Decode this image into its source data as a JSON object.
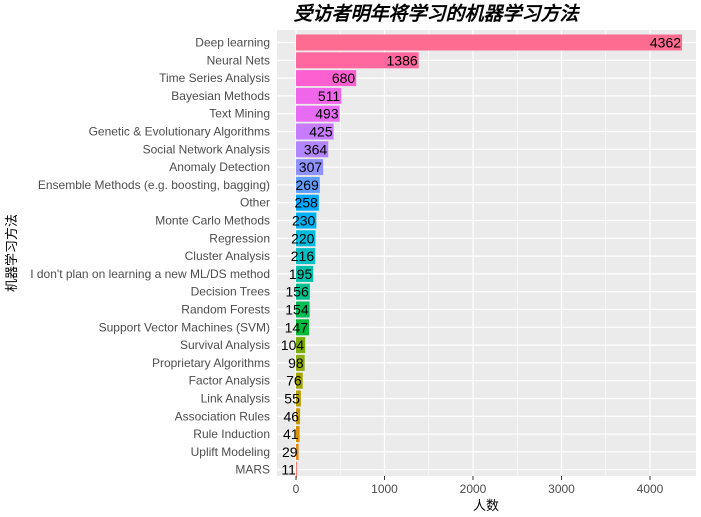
{
  "chart_data": {
    "type": "bar",
    "orientation": "horizontal",
    "title": "受访者明年将学习的机器学习方法",
    "xlabel": "人数",
    "ylabel": "机器学习方法",
    "xlim": [
      0,
      4400
    ],
    "x_ticks": [
      0,
      1000,
      2000,
      3000,
      4000
    ],
    "grid": true,
    "legend": "none",
    "categories": [
      "Deep learning",
      "Neural Nets",
      "Time Series Analysis",
      "Bayesian Methods",
      "Text Mining",
      "Genetic & Evolutionary Algorithms",
      "Social Network Analysis",
      "Anomaly Detection",
      "Ensemble Methods (e.g. boosting, bagging)",
      "Other",
      "Monte Carlo Methods",
      "Regression",
      "Cluster Analysis",
      "I don't plan on learning a new ML/DS method",
      "Decision Trees",
      "Random Forests",
      "Support Vector Machines (SVM)",
      "Survival Analysis",
      "Proprietary Algorithms",
      "Factor Analysis",
      "Link Analysis",
      "Association Rules",
      "Rule Induction",
      "Uplift Modeling",
      "MARS"
    ],
    "values": [
      4362,
      1386,
      680,
      511,
      493,
      425,
      364,
      307,
      269,
      258,
      230,
      220,
      216,
      195,
      156,
      154,
      147,
      104,
      98,
      76,
      55,
      46,
      41,
      29,
      11
    ],
    "colors": [
      "#FF6C91",
      "#FF689F",
      "#FD61D1",
      "#F066EA",
      "#E76BF3",
      "#C77CFF",
      "#B385FF",
      "#8F91FF",
      "#619CFF",
      "#00A9FF",
      "#00B2F3",
      "#00BBDB",
      "#00BFC4",
      "#00C1AA",
      "#00C08B",
      "#00BC56",
      "#00BA38",
      "#7CAE00",
      "#8EAB12",
      "#A3A500",
      "#B79F00",
      "#C49A00",
      "#D89000",
      "#E68613",
      "#F8766D"
    ]
  }
}
